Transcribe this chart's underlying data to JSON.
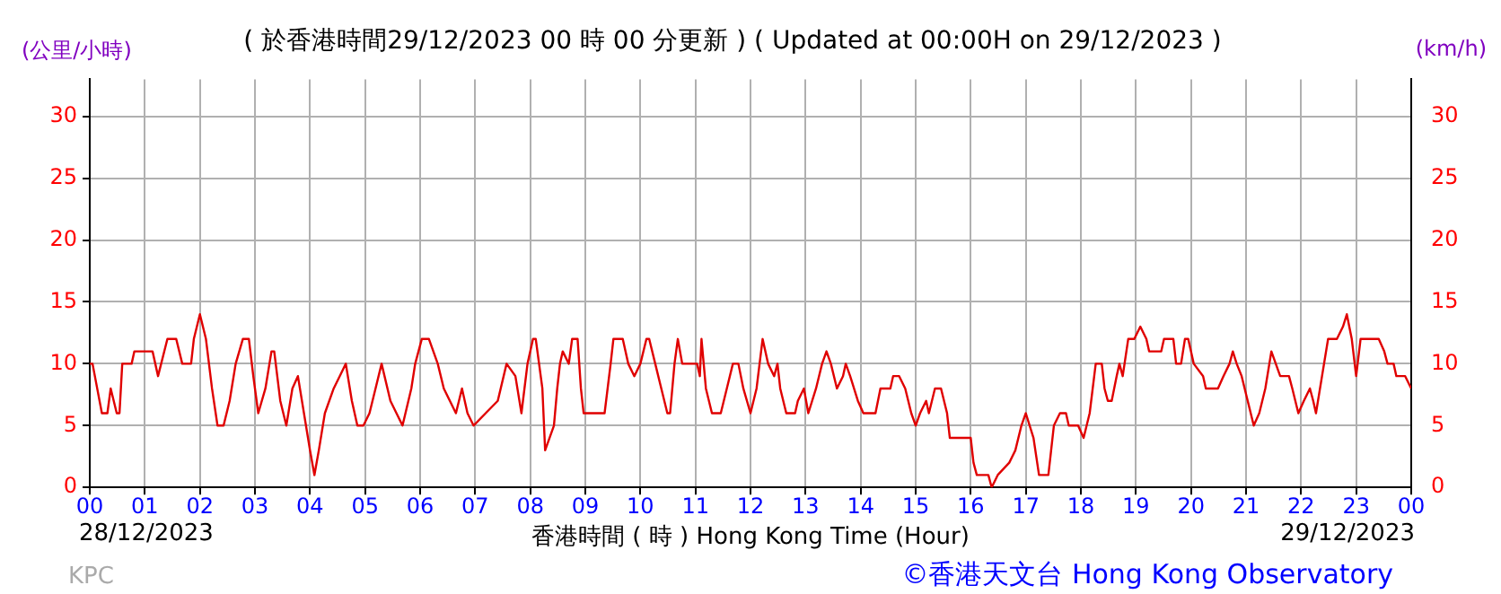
{
  "chart_data": {
    "type": "line",
    "title": "( 於香港時間29/12/2023 00 時 00 分更新 ) ( Updated at 00:00H on 29/12/2023 )",
    "ylabel": "(公里/小時)",
    "y2label": "(km/h)",
    "xlabel": "香港時間 ( 時 )  Hong Kong Time (Hour)",
    "annotations": [
      "28/12/2023",
      "29/12/2023",
      "KPC",
      "©香港天文台 Hong Kong Observatory"
    ],
    "series": [
      {
        "color": "#e00000",
        "x": [
          0,
          0.05,
          0.22,
          0.32,
          0.38,
          0.49,
          0.54,
          0.59,
          0.76,
          0.81,
          1.14,
          1.19,
          1.24,
          1.41,
          1.57,
          1.68,
          1.84,
          1.89,
          2.0,
          2.11,
          2.22,
          2.32,
          2.43,
          2.54,
          2.65,
          2.78,
          2.89,
          2.97,
          3.06,
          3.19,
          3.3,
          3.35,
          3.46,
          3.57,
          3.68,
          3.78,
          3.89,
          4.0,
          4.08,
          4.16,
          4.27,
          4.43,
          4.54,
          4.65,
          4.76,
          4.86,
          4.97,
          5.08,
          5.19,
          5.3,
          5.46,
          5.57,
          5.68,
          5.84,
          5.91,
          6.03,
          6.16,
          6.32,
          6.43,
          6.54,
          6.65,
          6.76,
          6.86,
          6.97,
          7.19,
          7.41,
          7.57,
          7.73,
          7.84,
          7.95,
          8.05,
          8.1,
          8.22,
          8.27,
          8.43,
          8.49,
          8.54,
          8.59,
          8.7,
          8.76,
          8.86,
          8.92,
          8.97,
          9.35,
          9.46,
          9.51,
          9.68,
          9.78,
          9.89,
          10.0,
          10.11,
          10.16,
          10.27,
          10.38,
          10.49,
          10.54,
          10.62,
          10.68,
          10.76,
          11.03,
          11.08,
          11.11,
          11.19,
          11.3,
          11.46,
          11.57,
          11.68,
          11.78,
          11.87,
          12.0,
          12.11,
          12.22,
          12.32,
          12.43,
          12.49,
          12.54,
          12.65,
          12.81,
          12.86,
          12.97,
          13.05,
          13.19,
          13.3,
          13.38,
          13.46,
          13.57,
          13.68,
          13.73,
          13.81,
          13.95,
          14.05,
          14.27,
          14.36,
          14.54,
          14.59,
          14.7,
          14.81,
          14.92,
          15.0,
          15.08,
          15.19,
          15.24,
          15.35,
          15.46,
          15.57,
          15.62,
          15.73,
          16.0,
          16.05,
          16.11,
          16.32,
          16.38,
          16.49,
          16.7,
          16.81,
          16.92,
          17.0,
          17.14,
          17.24,
          17.41,
          17.46,
          17.51,
          17.62,
          17.73,
          17.78,
          17.95,
          18.05,
          18.16,
          18.27,
          18.38,
          18.43,
          18.49,
          18.56,
          18.65,
          18.7,
          18.76,
          18.86,
          18.97,
          19.08,
          19.19,
          19.24,
          19.46,
          19.51,
          19.68,
          19.73,
          19.82,
          19.89,
          19.95,
          20.05,
          20.22,
          20.27,
          20.49,
          20.59,
          20.7,
          20.76,
          20.83,
          20.92,
          21.03,
          21.14,
          21.24,
          21.35,
          21.46,
          21.62,
          21.78,
          21.84,
          21.95,
          22.05,
          22.16,
          22.22,
          22.27,
          22.38,
          22.49,
          22.65,
          22.76,
          22.83,
          22.92,
          23.0,
          23.08,
          23.41,
          23.51,
          23.57,
          23.68,
          23.73,
          23.89,
          24
        ],
        "values": [
          10,
          10,
          6,
          6,
          8,
          6,
          6,
          10,
          10,
          11,
          11,
          10,
          9,
          12,
          12,
          10,
          10,
          12,
          14,
          12,
          8,
          5,
          5,
          7,
          10,
          12,
          12,
          9,
          6,
          8,
          11,
          11,
          7,
          5,
          8,
          9,
          6,
          3,
          1,
          3,
          6,
          8,
          9,
          10,
          7,
          5,
          5,
          6,
          8,
          10,
          7,
          6,
          5,
          8,
          10,
          12,
          12,
          10,
          8,
          7,
          6,
          8,
          6,
          5,
          6,
          7,
          10,
          9,
          6,
          10,
          12,
          12,
          8,
          3,
          5,
          8,
          10,
          11,
          10,
          12,
          12,
          8,
          6,
          6,
          10,
          12,
          12,
          10,
          9,
          10,
          12,
          12,
          10,
          8,
          6,
          6,
          10,
          12,
          10,
          10,
          9,
          12,
          8,
          6,
          6,
          8,
          10,
          10,
          8,
          6,
          8,
          12,
          10,
          9,
          10,
          8,
          6,
          6,
          7,
          8,
          6,
          8,
          10,
          11,
          10,
          8,
          9,
          10,
          9,
          7,
          6,
          6,
          8,
          8,
          9,
          9,
          8,
          6,
          5,
          6,
          7,
          6,
          8,
          8,
          6,
          4,
          4,
          4,
          2,
          1,
          1,
          0,
          1,
          2,
          3,
          5,
          6,
          4,
          1,
          1,
          3,
          5,
          6,
          6,
          5,
          5,
          4,
          6,
          10,
          10,
          8,
          7,
          7,
          9,
          10,
          9,
          12,
          12,
          13,
          12,
          11,
          11,
          12,
          12,
          10,
          10,
          12,
          12,
          10,
          9,
          8,
          8,
          9,
          10,
          11,
          10,
          9,
          7,
          5,
          6,
          8,
          11,
          9,
          9,
          8,
          6,
          7,
          8,
          7,
          6,
          9,
          12,
          12,
          13,
          14,
          12,
          9,
          12,
          12,
          11,
          10,
          10,
          9,
          9,
          8
        ]
      }
    ],
    "xlim": [
      0,
      24
    ],
    "xticks": [
      {
        "value": 0,
        "label": "00"
      },
      {
        "value": 1,
        "label": "01"
      },
      {
        "value": 2,
        "label": "02"
      },
      {
        "value": 3,
        "label": "03"
      },
      {
        "value": 4,
        "label": "04"
      },
      {
        "value": 5,
        "label": "05"
      },
      {
        "value": 6,
        "label": "06"
      },
      {
        "value": 7,
        "label": "07"
      },
      {
        "value": 8,
        "label": "08"
      },
      {
        "value": 9,
        "label": "09"
      },
      {
        "value": 10,
        "label": "10"
      },
      {
        "value": 11,
        "label": "11"
      },
      {
        "value": 12,
        "label": "12"
      },
      {
        "value": 13,
        "label": "13"
      },
      {
        "value": 14,
        "label": "14"
      },
      {
        "value": 15,
        "label": "15"
      },
      {
        "value": 16,
        "label": "16"
      },
      {
        "value": 17,
        "label": "17"
      },
      {
        "value": 18,
        "label": "18"
      },
      {
        "value": 19,
        "label": "19"
      },
      {
        "value": 20,
        "label": "20"
      },
      {
        "value": 21,
        "label": "21"
      },
      {
        "value": 22,
        "label": "22"
      },
      {
        "value": 23,
        "label": "23"
      },
      {
        "value": 24,
        "label": "00"
      }
    ],
    "ylim": [
      0,
      33
    ],
    "yticks": [
      0,
      5,
      10,
      15,
      20,
      25,
      30
    ],
    "y2lim": [
      0,
      33
    ],
    "y2ticks": [
      0,
      5,
      10,
      15,
      20,
      25,
      30
    ],
    "grid": true,
    "legend": false
  }
}
